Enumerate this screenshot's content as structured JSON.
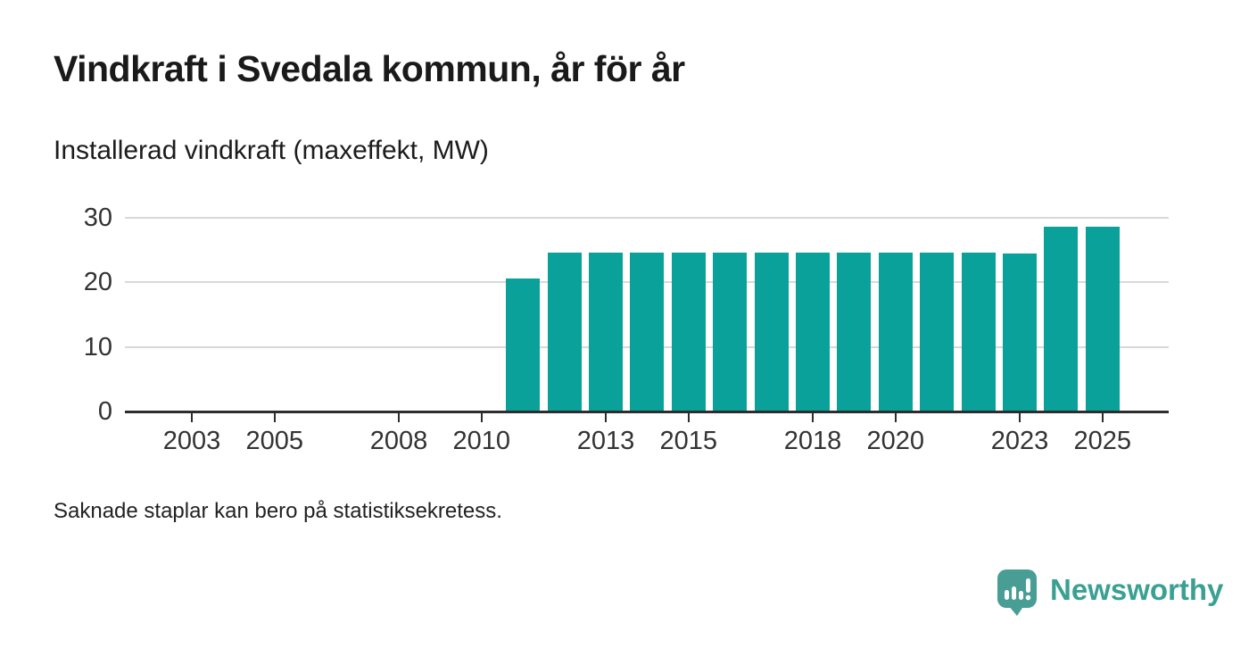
{
  "chart_data": {
    "type": "bar",
    "title": "Vindkraft i Svedala kommun, år för år",
    "subtitle": "Installerad vindkraft (maxeffekt, MW)",
    "footnote": "Saknade staplar kan bero på statistiksekretess.",
    "categories": [
      2002,
      2003,
      2004,
      2005,
      2006,
      2007,
      2008,
      2009,
      2010,
      2011,
      2012,
      2013,
      2014,
      2015,
      2016,
      2017,
      2018,
      2019,
      2020,
      2021,
      2022,
      2023,
      2024,
      2025
    ],
    "values": [
      null,
      null,
      null,
      null,
      null,
      null,
      null,
      null,
      null,
      20.6,
      24.6,
      24.6,
      24.6,
      24.6,
      24.6,
      24.6,
      24.6,
      24.6,
      24.6,
      24.6,
      24.6,
      24.5,
      28.6,
      28.6
    ],
    "xticks": [
      2003,
      2005,
      2008,
      2010,
      2013,
      2015,
      2018,
      2020,
      2023,
      2025
    ],
    "yticks": [
      0,
      10,
      20,
      30
    ],
    "ylim": [
      0,
      30
    ],
    "x_domain": [
      2002,
      2026
    ],
    "grid": "horizontal-only",
    "legend": "none",
    "missing_bars_note": "bars absent for 2002-2010",
    "bar_color": "#0aa19a",
    "gridline_color": "#d9d9d9",
    "axis_color": "#2d2d2d",
    "tick_label_color": "#333333"
  },
  "branding": {
    "logo_text": "Newsworthy",
    "logo_icon": "bar-chart-speech-bubble-icon",
    "logo_mark_color": "#489e94",
    "logo_text_color": "#3aa092",
    "logo_bar_glyph_color": "#ffffff"
  }
}
